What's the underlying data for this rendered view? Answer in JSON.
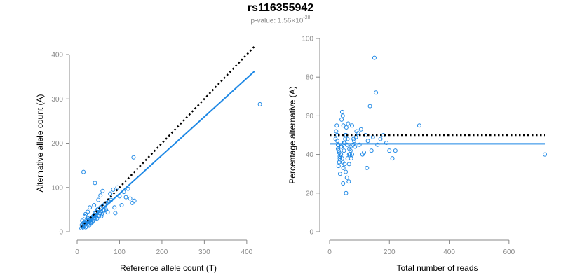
{
  "title": "rs116355942",
  "subtitle": {
    "prefix": "p-value: 1.56×10",
    "exponent": "-28"
  },
  "colors": {
    "points": "#1e88e5",
    "fit_line": "#1e88e5",
    "reference_line": "#000000",
    "axis": "#888888"
  },
  "chart_data": [
    {
      "type": "scatter",
      "title": "",
      "xlabel": "Reference allele count (T)",
      "ylabel": "Alternative allele count (A)",
      "xlim": [
        0,
        430
      ],
      "ylim": [
        0,
        400
      ],
      "xticks": [
        0,
        100,
        200,
        300,
        400
      ],
      "yticks": [
        0,
        100,
        200,
        300,
        400
      ],
      "reference_line": {
        "style": "dotted",
        "x": [
          10,
          418
        ],
        "y": [
          10,
          418
        ]
      },
      "fit_line": {
        "style": "solid",
        "x": [
          10,
          418
        ],
        "y": [
          8,
          362
        ]
      },
      "points": {
        "x": [
          15,
          431,
          133,
          120,
          78,
          60,
          55,
          50,
          42,
          85,
          95,
          110,
          125,
          130,
          135,
          40,
          30,
          25,
          20,
          18,
          12,
          15,
          18,
          20,
          22,
          25,
          28,
          30,
          32,
          35,
          38,
          40,
          42,
          45,
          48,
          50,
          55,
          60,
          65,
          70,
          75,
          80,
          88,
          100,
          90,
          105,
          115,
          10,
          13,
          16,
          19,
          22,
          26,
          29,
          33,
          37,
          41,
          45,
          52,
          58,
          62,
          68,
          72,
          14,
          17,
          21,
          24,
          27,
          31,
          34,
          36,
          39,
          44,
          47,
          53,
          57,
          64,
          11,
          23,
          43
        ],
        "y": [
          135,
          288,
          168,
          97,
          86,
          92,
          82,
          72,
          110,
          95,
          100,
          90,
          75,
          65,
          70,
          60,
          55,
          45,
          40,
          35,
          25,
          20,
          15,
          10,
          12,
          18,
          22,
          28,
          30,
          32,
          35,
          38,
          42,
          45,
          50,
          52,
          55,
          58,
          62,
          65,
          68,
          72,
          55,
          80,
          42,
          60,
          78,
          8,
          12,
          18,
          22,
          26,
          30,
          15,
          20,
          25,
          28,
          34,
          36,
          40,
          48,
          50,
          44,
          10,
          14,
          20,
          24,
          18,
          28,
          26,
          22,
          32,
          38,
          30,
          42,
          35,
          48,
          15,
          20,
          36
        ]
      }
    },
    {
      "type": "scatter",
      "title": "",
      "xlabel": "Total number of reads",
      "ylabel": "Percentage alternative (A)",
      "xlim": [
        0,
        720
      ],
      "ylim": [
        0,
        100
      ],
      "xticks": [
        0,
        200,
        400,
        600
      ],
      "yticks": [
        0,
        20,
        40,
        60,
        80,
        100
      ],
      "reference_line": {
        "style": "dotted",
        "y": 50,
        "x": [
          0,
          720
        ]
      },
      "fit_line": {
        "style": "solid",
        "y": 45.5,
        "x": [
          0,
          720
        ]
      },
      "points": {
        "x": [
          150,
          155,
          180,
          135,
          300,
          720,
          200,
          210,
          220,
          160,
          170,
          190,
          120,
          140,
          110,
          100,
          90,
          85,
          80,
          75,
          70,
          65,
          60,
          58,
          55,
          52,
          50,
          48,
          46,
          44,
          42,
          40,
          38,
          36,
          34,
          32,
          30,
          28,
          26,
          24,
          22,
          20,
          35,
          45,
          55,
          65,
          75,
          40,
          50,
          60,
          70,
          30,
          38,
          42,
          48,
          52,
          56,
          62,
          68,
          72,
          26,
          28,
          32,
          34,
          36,
          44,
          46,
          54,
          58,
          64,
          66,
          78,
          82,
          88,
          95,
          105,
          115,
          125,
          128,
          145
        ],
        "y": [
          90,
          72,
          50,
          65,
          55,
          40,
          42,
          38,
          42,
          45,
          48,
          46,
          50,
          42,
          40,
          45,
          52,
          44,
          48,
          55,
          42,
          40,
          38,
          45,
          50,
          48,
          35,
          42,
          55,
          60,
          62,
          58,
          44,
          40,
          38,
          36,
          34,
          45,
          50,
          55,
          52,
          48,
          30,
          25,
          20,
          35,
          40,
          44,
          46,
          48,
          44,
          42,
          40,
          38,
          46,
          50,
          54,
          56,
          40,
          38,
          47,
          43,
          41,
          39,
          37,
          36,
          33,
          31,
          28,
          26,
          43,
          45,
          47,
          49,
          51,
          53,
          41,
          33,
          47,
          49
        ]
      }
    }
  ]
}
